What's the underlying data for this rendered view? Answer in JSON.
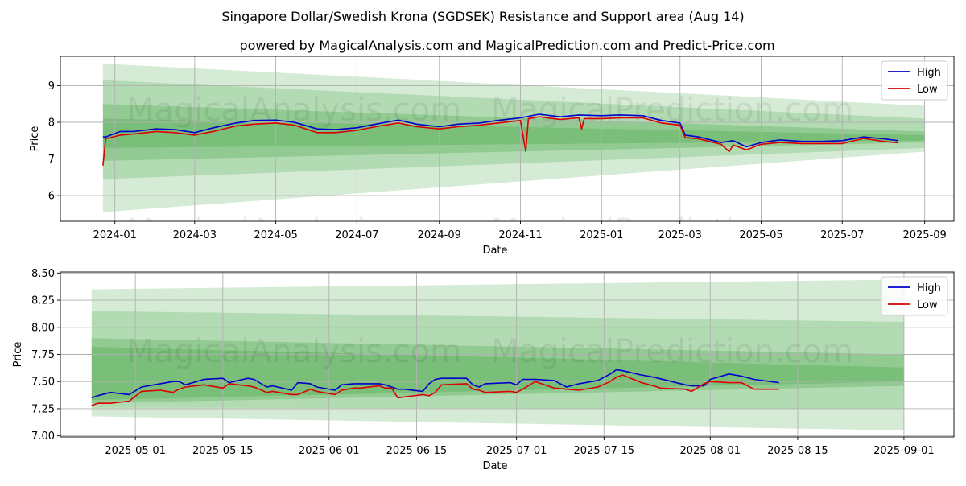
{
  "titles": {
    "main": "Singapore Dollar/Swedish Krona (SGDSEK) Resistance and Support area (Aug 14)",
    "sub": "powered by MagicalAnalysis.com and MagicalPrediction.com and Predict-Price.com"
  },
  "watermarks": [
    "MagicalAnalysis.com",
    "MagicalPrediction.com"
  ],
  "colors": {
    "high": "#0000cc",
    "low": "#dd0000",
    "band": "#2e9b2e",
    "grid": "#b0b0b0"
  },
  "chart_data": [
    {
      "type": "line",
      "name": "overview",
      "xlabel": "Date",
      "ylabel": "Price",
      "xlim": [
        "2023-11-21",
        "2025-09-23"
      ],
      "ylim": [
        5.3,
        9.8
      ],
      "x_ticks": [
        {
          "date": "2024-01-01",
          "label": "2024-01"
        },
        {
          "date": "2024-03-01",
          "label": "2024-03"
        },
        {
          "date": "2024-05-01",
          "label": "2024-05"
        },
        {
          "date": "2024-07-01",
          "label": "2024-07"
        },
        {
          "date": "2024-09-01",
          "label": "2024-09"
        },
        {
          "date": "2024-11-01",
          "label": "2024-11"
        },
        {
          "date": "2025-01-01",
          "label": "2025-01"
        },
        {
          "date": "2025-03-01",
          "label": "2025-03"
        },
        {
          "date": "2025-05-01",
          "label": "2025-05"
        },
        {
          "date": "2025-07-01",
          "label": "2025-07"
        },
        {
          "date": "2025-09-01",
          "label": "2025-09"
        }
      ],
      "y_ticks": [
        6,
        7,
        8,
        9
      ],
      "legend": [
        "High",
        "Low"
      ],
      "legend_position": "top-right",
      "bands": [
        {
          "x0": "2023-12-23",
          "x1": "2025-09-01",
          "y0_lo": 5.55,
          "y0_hi": 9.6,
          "y1_lo": 7.2,
          "y1_hi": 8.45,
          "alpha": 0.2
        },
        {
          "x0": "2023-12-23",
          "x1": "2025-09-01",
          "y0_lo": 6.45,
          "y0_hi": 9.15,
          "y1_lo": 7.3,
          "y1_hi": 8.1,
          "alpha": 0.2
        },
        {
          "x0": "2023-12-23",
          "x1": "2025-09-01",
          "y0_lo": 6.95,
          "y0_hi": 8.5,
          "y1_lo": 7.45,
          "y1_hi": 7.75,
          "alpha": 0.25
        },
        {
          "x0": "2023-12-23",
          "x1": "2025-09-01",
          "y0_lo": 7.3,
          "y0_hi": 8.1,
          "y1_lo": 7.5,
          "y1_hi": 7.65,
          "alpha": 0.25
        }
      ],
      "series": [
        {
          "name": "High",
          "x": [
            "2023-12-23",
            "2023-12-25",
            "2024-01-05",
            "2024-01-15",
            "2024-02-01",
            "2024-02-15",
            "2024-03-01",
            "2024-03-15",
            "2024-04-01",
            "2024-04-15",
            "2024-05-01",
            "2024-05-15",
            "2024-06-01",
            "2024-06-15",
            "2024-07-01",
            "2024-07-15",
            "2024-08-01",
            "2024-08-15",
            "2024-09-01",
            "2024-09-15",
            "2024-10-01",
            "2024-10-15",
            "2024-11-01",
            "2024-11-15",
            "2024-12-01",
            "2024-12-15",
            "2025-01-01",
            "2025-01-15",
            "2025-02-01",
            "2025-02-15",
            "2025-03-01",
            "2025-03-05",
            "2025-03-15",
            "2025-04-01",
            "2025-04-10",
            "2025-04-20",
            "2025-05-01",
            "2025-05-15",
            "2025-06-01",
            "2025-06-15",
            "2025-07-01",
            "2025-07-17",
            "2025-08-01",
            "2025-08-12"
          ],
          "values": [
            7.6,
            7.6,
            7.75,
            7.75,
            7.82,
            7.8,
            7.72,
            7.85,
            7.98,
            8.05,
            8.06,
            8.0,
            7.82,
            7.8,
            7.85,
            7.95,
            8.06,
            7.95,
            7.88,
            7.95,
            7.98,
            8.05,
            8.12,
            8.22,
            8.15,
            8.2,
            8.18,
            8.2,
            8.18,
            8.05,
            7.98,
            7.65,
            7.6,
            7.45,
            7.5,
            7.33,
            7.45,
            7.52,
            7.48,
            7.48,
            7.5,
            7.6,
            7.55,
            7.5
          ]
        },
        {
          "name": "Low",
          "x": [
            "2023-12-23",
            "2023-12-25",
            "2024-01-05",
            "2024-01-15",
            "2024-02-01",
            "2024-02-15",
            "2024-03-01",
            "2024-03-15",
            "2024-04-01",
            "2024-04-15",
            "2024-05-01",
            "2024-05-15",
            "2024-06-01",
            "2024-06-15",
            "2024-07-01",
            "2024-07-15",
            "2024-08-01",
            "2024-08-15",
            "2024-09-01",
            "2024-09-15",
            "2024-10-01",
            "2024-10-15",
            "2024-11-01",
            "2024-11-05",
            "2024-11-07",
            "2024-11-15",
            "2024-12-01",
            "2024-12-15",
            "2024-12-17",
            "2024-12-19",
            "2025-01-01",
            "2025-01-15",
            "2025-02-01",
            "2025-02-15",
            "2025-03-01",
            "2025-03-05",
            "2025-03-15",
            "2025-04-01",
            "2025-04-07",
            "2025-04-10",
            "2025-04-20",
            "2025-05-01",
            "2025-05-15",
            "2025-06-01",
            "2025-06-15",
            "2025-07-01",
            "2025-07-17",
            "2025-08-01",
            "2025-08-12"
          ],
          "values": [
            6.82,
            7.55,
            7.65,
            7.68,
            7.75,
            7.72,
            7.65,
            7.75,
            7.9,
            7.95,
            7.98,
            7.92,
            7.72,
            7.72,
            7.78,
            7.88,
            7.98,
            7.88,
            7.82,
            7.88,
            7.92,
            7.98,
            8.05,
            7.2,
            8.1,
            8.15,
            8.08,
            8.12,
            7.82,
            8.1,
            8.1,
            8.12,
            8.12,
            7.98,
            7.92,
            7.58,
            7.55,
            7.4,
            7.2,
            7.38,
            7.25,
            7.4,
            7.45,
            7.42,
            7.42,
            7.42,
            7.56,
            7.48,
            7.44
          ]
        }
      ]
    },
    {
      "type": "line",
      "name": "zoom",
      "xlabel": "Date",
      "ylabel": "Price",
      "xlim": [
        "2025-04-19",
        "2025-09-09"
      ],
      "ylim": [
        6.99,
        8.51
      ],
      "x_ticks": [
        {
          "date": "2025-05-01",
          "label": "2025-05-01"
        },
        {
          "date": "2025-05-15",
          "label": "2025-05-15"
        },
        {
          "date": "2025-06-01",
          "label": "2025-06-01"
        },
        {
          "date": "2025-06-15",
          "label": "2025-06-15"
        },
        {
          "date": "2025-07-01",
          "label": "2025-07-01"
        },
        {
          "date": "2025-07-15",
          "label": "2025-07-15"
        },
        {
          "date": "2025-08-01",
          "label": "2025-08-01"
        },
        {
          "date": "2025-08-15",
          "label": "2025-08-15"
        },
        {
          "date": "2025-09-01",
          "label": "2025-09-01"
        }
      ],
      "y_ticks": [
        7.0,
        7.25,
        7.5,
        7.75,
        8.0,
        8.25,
        8.5
      ],
      "legend": [
        "High",
        "Low"
      ],
      "legend_position": "top-right",
      "bands": [
        {
          "x0": "2025-04-24",
          "x1": "2025-09-01",
          "y0_lo": 7.18,
          "y0_hi": 8.35,
          "y1_lo": 7.05,
          "y1_hi": 8.44,
          "alpha": 0.2
        },
        {
          "x0": "2025-04-24",
          "x1": "2025-09-01",
          "y0_lo": 7.26,
          "y0_hi": 8.15,
          "y1_lo": 7.25,
          "y1_hi": 8.05,
          "alpha": 0.2
        },
        {
          "x0": "2025-04-24",
          "x1": "2025-09-01",
          "y0_lo": 7.3,
          "y0_hi": 7.9,
          "y1_lo": 7.46,
          "y1_hi": 7.75,
          "alpha": 0.25
        },
        {
          "x0": "2025-04-24",
          "x1": "2025-09-01",
          "y0_lo": 7.33,
          "y0_hi": 7.82,
          "y1_lo": 7.5,
          "y1_hi": 7.63,
          "alpha": 0.25
        }
      ],
      "series": [
        {
          "name": "High",
          "x": [
            "2025-04-24",
            "2025-04-25",
            "2025-04-27",
            "2025-04-30",
            "2025-05-02",
            "2025-05-05",
            "2025-05-07",
            "2025-05-08",
            "2025-05-09",
            "2025-05-12",
            "2025-05-15",
            "2025-05-16",
            "2025-05-19",
            "2025-05-20",
            "2025-05-22",
            "2025-05-23",
            "2025-05-26",
            "2025-05-27",
            "2025-05-29",
            "2025-05-30",
            "2025-06-02",
            "2025-06-03",
            "2025-06-05",
            "2025-06-06",
            "2025-06-09",
            "2025-06-10",
            "2025-06-12",
            "2025-06-13",
            "2025-06-16",
            "2025-06-17",
            "2025-06-18",
            "2025-06-19",
            "2025-06-23",
            "2025-06-24",
            "2025-06-25",
            "2025-06-26",
            "2025-06-30",
            "2025-07-01",
            "2025-07-02",
            "2025-07-04",
            "2025-07-07",
            "2025-07-09",
            "2025-07-11",
            "2025-07-14",
            "2025-07-16",
            "2025-07-17",
            "2025-07-18",
            "2025-07-21",
            "2025-07-23",
            "2025-07-28",
            "2025-07-29",
            "2025-07-31",
            "2025-08-01",
            "2025-08-04",
            "2025-08-06",
            "2025-08-08",
            "2025-08-12"
          ],
          "values": [
            7.35,
            7.37,
            7.4,
            7.38,
            7.45,
            7.48,
            7.5,
            7.5,
            7.47,
            7.52,
            7.53,
            7.49,
            7.53,
            7.52,
            7.45,
            7.46,
            7.42,
            7.49,
            7.48,
            7.45,
            7.42,
            7.47,
            7.48,
            7.48,
            7.48,
            7.47,
            7.43,
            7.43,
            7.41,
            7.48,
            7.52,
            7.53,
            7.53,
            7.47,
            7.45,
            7.48,
            7.49,
            7.47,
            7.52,
            7.52,
            7.51,
            7.45,
            7.48,
            7.51,
            7.57,
            7.61,
            7.6,
            7.56,
            7.54,
            7.47,
            7.46,
            7.46,
            7.52,
            7.57,
            7.55,
            7.52,
            7.49
          ]
        },
        {
          "name": "Low",
          "x": [
            "2025-04-24",
            "2025-04-25",
            "2025-04-27",
            "2025-04-30",
            "2025-05-02",
            "2025-05-05",
            "2025-05-07",
            "2025-05-08",
            "2025-05-09",
            "2025-05-12",
            "2025-05-15",
            "2025-05-16",
            "2025-05-19",
            "2025-05-20",
            "2025-05-22",
            "2025-05-23",
            "2025-05-26",
            "2025-05-27",
            "2025-05-29",
            "2025-05-30",
            "2025-06-02",
            "2025-06-03",
            "2025-06-05",
            "2025-06-06",
            "2025-06-09",
            "2025-06-10",
            "2025-06-11",
            "2025-06-12",
            "2025-06-16",
            "2025-06-17",
            "2025-06-18",
            "2025-06-19",
            "2025-06-23",
            "2025-06-24",
            "2025-06-25",
            "2025-06-26",
            "2025-06-30",
            "2025-07-01",
            "2025-07-02",
            "2025-07-04",
            "2025-07-07",
            "2025-07-09",
            "2025-07-11",
            "2025-07-14",
            "2025-07-16",
            "2025-07-17",
            "2025-07-18",
            "2025-07-21",
            "2025-07-23",
            "2025-07-24",
            "2025-07-28",
            "2025-07-29",
            "2025-07-31",
            "2025-08-01",
            "2025-08-04",
            "2025-08-06",
            "2025-08-08",
            "2025-08-12"
          ],
          "values": [
            7.28,
            7.3,
            7.3,
            7.32,
            7.41,
            7.42,
            7.4,
            7.43,
            7.45,
            7.47,
            7.44,
            7.48,
            7.46,
            7.45,
            7.4,
            7.41,
            7.38,
            7.38,
            7.43,
            7.41,
            7.38,
            7.42,
            7.44,
            7.44,
            7.46,
            7.44,
            7.44,
            7.35,
            7.38,
            7.37,
            7.4,
            7.47,
            7.48,
            7.43,
            7.42,
            7.4,
            7.41,
            7.4,
            7.43,
            7.5,
            7.44,
            7.43,
            7.42,
            7.45,
            7.5,
            7.54,
            7.56,
            7.49,
            7.46,
            7.44,
            7.43,
            7.41,
            7.48,
            7.5,
            7.49,
            7.49,
            7.43,
            7.43
          ]
        }
      ]
    }
  ]
}
